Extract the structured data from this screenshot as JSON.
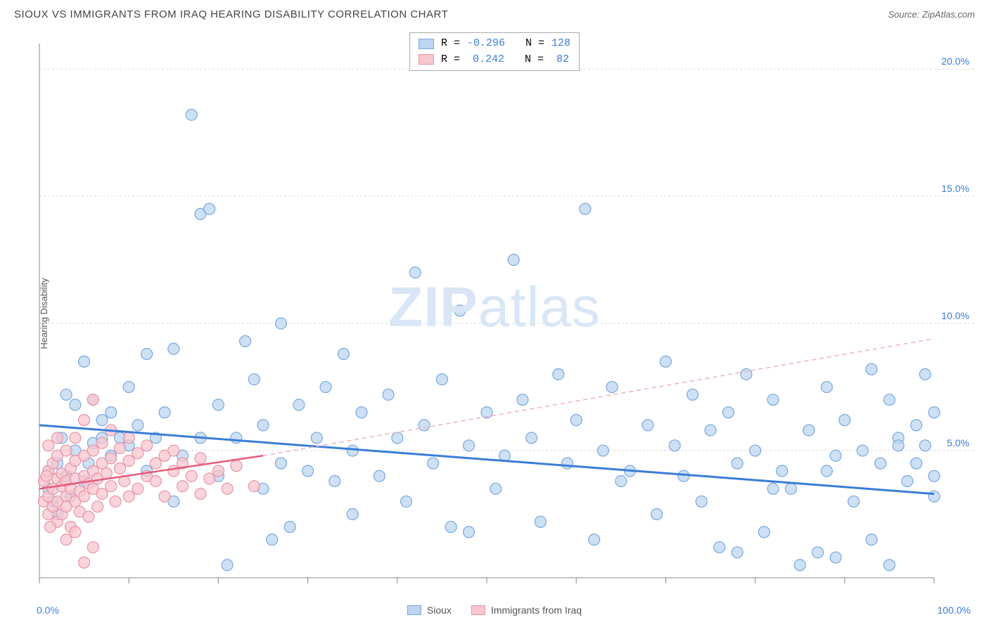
{
  "header": {
    "title": "SIOUX VS IMMIGRANTS FROM IRAQ HEARING DISABILITY CORRELATION CHART",
    "source_prefix": "Source: ",
    "source_link": "ZipAtlas.com"
  },
  "ylabel": "Hearing Disability",
  "watermark_bold": "ZIP",
  "watermark_rest": "atlas",
  "chart": {
    "type": "scatter",
    "xlim": [
      0,
      100
    ],
    "ylim": [
      0,
      21
    ],
    "x_ticks": [
      0,
      10,
      20,
      30,
      40,
      50,
      60,
      70,
      80,
      90,
      100
    ],
    "y_gridlines": [
      5,
      10,
      15,
      20
    ],
    "x_axis_labels": {
      "left": "0.0%",
      "right": "100.0%"
    },
    "y_axis_labels": [
      "5.0%",
      "10.0%",
      "15.0%",
      "20.0%"
    ],
    "background_color": "#ffffff",
    "grid_color": "#d9d9d9",
    "tick_color": "#888888",
    "axis_line_color": "#888888",
    "series": {
      "sioux": {
        "label": "Sioux",
        "marker_fill": "#bcd5f0",
        "marker_stroke": "#7aa8de",
        "marker_radius": 8,
        "line_color": "#3b7dd8",
        "line_width": 3,
        "R": "-0.296",
        "N": "128",
        "trend": {
          "x1": 0,
          "y1": 6.0,
          "x2": 100,
          "y2": 3.3
        },
        "points": [
          [
            1,
            3.5
          ],
          [
            1,
            4.2
          ],
          [
            1.5,
            3.0
          ],
          [
            2,
            4.5
          ],
          [
            2,
            2.5
          ],
          [
            2.5,
            5.5
          ],
          [
            3,
            4.0
          ],
          [
            3,
            7.2
          ],
          [
            3.5,
            3.2
          ],
          [
            4,
            5.0
          ],
          [
            4,
            6.8
          ],
          [
            5,
            3.8
          ],
          [
            5,
            8.5
          ],
          [
            5.5,
            4.5
          ],
          [
            6,
            5.3
          ],
          [
            6,
            7.0
          ],
          [
            7,
            5.5
          ],
          [
            7,
            6.2
          ],
          [
            8,
            4.8
          ],
          [
            8,
            6.5
          ],
          [
            9,
            5.5
          ],
          [
            10,
            7.5
          ],
          [
            10,
            5.2
          ],
          [
            11,
            6.0
          ],
          [
            12,
            4.2
          ],
          [
            12,
            8.8
          ],
          [
            13,
            5.5
          ],
          [
            14,
            6.5
          ],
          [
            15,
            3.0
          ],
          [
            15,
            9.0
          ],
          [
            16,
            4.8
          ],
          [
            17,
            18.2
          ],
          [
            18,
            14.3
          ],
          [
            18,
            5.5
          ],
          [
            19,
            14.5
          ],
          [
            20,
            4.0
          ],
          [
            20,
            6.8
          ],
          [
            21,
            0.5
          ],
          [
            22,
            5.5
          ],
          [
            23,
            9.3
          ],
          [
            24,
            7.8
          ],
          [
            25,
            3.5
          ],
          [
            25,
            6.0
          ],
          [
            26,
            1.5
          ],
          [
            27,
            4.5
          ],
          [
            27,
            10.0
          ],
          [
            28,
            2.0
          ],
          [
            29,
            6.8
          ],
          [
            30,
            4.2
          ],
          [
            31,
            5.5
          ],
          [
            32,
            7.5
          ],
          [
            33,
            3.8
          ],
          [
            34,
            8.8
          ],
          [
            35,
            2.5
          ],
          [
            35,
            5.0
          ],
          [
            36,
            6.5
          ],
          [
            38,
            4.0
          ],
          [
            39,
            7.2
          ],
          [
            40,
            5.5
          ],
          [
            41,
            3.0
          ],
          [
            42,
            12.0
          ],
          [
            43,
            6.0
          ],
          [
            44,
            4.5
          ],
          [
            45,
            7.8
          ],
          [
            46,
            2.0
          ],
          [
            47,
            10.5
          ],
          [
            48,
            5.2
          ],
          [
            48,
            1.8
          ],
          [
            50,
            6.5
          ],
          [
            51,
            3.5
          ],
          [
            52,
            4.8
          ],
          [
            53,
            12.5
          ],
          [
            54,
            7.0
          ],
          [
            55,
            5.5
          ],
          [
            56,
            2.2
          ],
          [
            58,
            8.0
          ],
          [
            59,
            4.5
          ],
          [
            60,
            6.2
          ],
          [
            61,
            14.5
          ],
          [
            62,
            1.5
          ],
          [
            63,
            5.0
          ],
          [
            64,
            7.5
          ],
          [
            65,
            3.8
          ],
          [
            66,
            4.2
          ],
          [
            68,
            6.0
          ],
          [
            69,
            2.5
          ],
          [
            70,
            8.5
          ],
          [
            71,
            5.2
          ],
          [
            72,
            4.0
          ],
          [
            73,
            7.2
          ],
          [
            74,
            3.0
          ],
          [
            75,
            5.8
          ],
          [
            76,
            1.2
          ],
          [
            77,
            6.5
          ],
          [
            78,
            4.5
          ],
          [
            79,
            8.0
          ],
          [
            80,
            5.0
          ],
          [
            81,
            1.8
          ],
          [
            82,
            7.0
          ],
          [
            83,
            4.2
          ],
          [
            84,
            3.5
          ],
          [
            85,
            0.5
          ],
          [
            86,
            5.8
          ],
          [
            87,
            1.0
          ],
          [
            88,
            7.5
          ],
          [
            89,
            4.8
          ],
          [
            89,
            0.8
          ],
          [
            90,
            6.2
          ],
          [
            91,
            3.0
          ],
          [
            92,
            5.0
          ],
          [
            93,
            1.5
          ],
          [
            93,
            8.2
          ],
          [
            94,
            4.5
          ],
          [
            95,
            7.0
          ],
          [
            95,
            0.5
          ],
          [
            96,
            5.5
          ],
          [
            97,
            3.8
          ],
          [
            98,
            6.0
          ],
          [
            98,
            4.5
          ],
          [
            99,
            5.2
          ],
          [
            99,
            8.0
          ],
          [
            100,
            4.0
          ],
          [
            100,
            6.5
          ],
          [
            100,
            3.2
          ],
          [
            96,
            5.2
          ],
          [
            88,
            4.2
          ],
          [
            82,
            3.5
          ],
          [
            78,
            1.0
          ]
        ]
      },
      "iraq": {
        "label": "Immigrants from Iraq",
        "marker_fill": "#f7c6cf",
        "marker_stroke": "#e994a6",
        "marker_radius": 8,
        "line_solid_color": "#e85a7a",
        "line_solid_width": 2.5,
        "line_dash_color": "#f0b0be",
        "line_dash_pattern": "6,5",
        "R": "0.242",
        "N": "82",
        "trend_solid": {
          "x1": 0,
          "y1": 3.5,
          "x2": 25,
          "y2": 4.8
        },
        "trend_dash": {
          "x1": 25,
          "y1": 4.8,
          "x2": 100,
          "y2": 9.4
        },
        "points": [
          [
            0.5,
            3.0
          ],
          [
            0.5,
            3.8
          ],
          [
            1,
            2.5
          ],
          [
            1,
            4.2
          ],
          [
            1,
            3.2
          ],
          [
            1.5,
            3.5
          ],
          [
            1.5,
            2.8
          ],
          [
            1.5,
            4.5
          ],
          [
            2,
            3.0
          ],
          [
            2,
            3.9
          ],
          [
            2,
            2.2
          ],
          [
            2,
            4.8
          ],
          [
            2.5,
            3.6
          ],
          [
            2.5,
            4.1
          ],
          [
            2.5,
            2.5
          ],
          [
            3,
            3.2
          ],
          [
            3,
            5.0
          ],
          [
            3,
            3.8
          ],
          [
            3,
            2.8
          ],
          [
            3.5,
            4.3
          ],
          [
            3.5,
            3.5
          ],
          [
            3.5,
            2.0
          ],
          [
            4,
            3.9
          ],
          [
            4,
            4.6
          ],
          [
            4,
            3.0
          ],
          [
            4,
            5.5
          ],
          [
            4.5,
            3.4
          ],
          [
            4.5,
            2.6
          ],
          [
            5,
            4.0
          ],
          [
            5,
            4.8
          ],
          [
            5,
            3.2
          ],
          [
            5,
            6.2
          ],
          [
            5.5,
            3.7
          ],
          [
            5.5,
            2.4
          ],
          [
            6,
            4.2
          ],
          [
            6,
            5.0
          ],
          [
            6,
            3.5
          ],
          [
            6,
            7.0
          ],
          [
            6.5,
            3.9
          ],
          [
            6.5,
            2.8
          ],
          [
            7,
            4.5
          ],
          [
            7,
            5.3
          ],
          [
            7,
            3.3
          ],
          [
            7.5,
            4.1
          ],
          [
            8,
            4.7
          ],
          [
            8,
            3.6
          ],
          [
            8,
            5.8
          ],
          [
            8.5,
            3.0
          ],
          [
            9,
            4.3
          ],
          [
            9,
            5.1
          ],
          [
            9.5,
            3.8
          ],
          [
            10,
            4.6
          ],
          [
            10,
            5.5
          ],
          [
            10,
            3.2
          ],
          [
            11,
            4.9
          ],
          [
            11,
            3.5
          ],
          [
            12,
            5.2
          ],
          [
            12,
            4.0
          ],
          [
            13,
            4.5
          ],
          [
            13,
            3.8
          ],
          [
            14,
            4.8
          ],
          [
            14,
            3.2
          ],
          [
            15,
            4.2
          ],
          [
            15,
            5.0
          ],
          [
            16,
            3.6
          ],
          [
            16,
            4.5
          ],
          [
            17,
            4.0
          ],
          [
            18,
            3.3
          ],
          [
            18,
            4.7
          ],
          [
            19,
            3.9
          ],
          [
            20,
            4.2
          ],
          [
            21,
            3.5
          ],
          [
            22,
            4.4
          ],
          [
            5,
            0.6
          ],
          [
            3,
            1.5
          ],
          [
            4,
            1.8
          ],
          [
            6,
            1.2
          ],
          [
            2,
            5.5
          ],
          [
            1,
            5.2
          ],
          [
            0.8,
            4.0
          ],
          [
            1.2,
            2.0
          ],
          [
            24,
            3.6
          ]
        ]
      }
    }
  },
  "legend_top": {
    "sioux_swatch_fill": "#bcd5f0",
    "sioux_swatch_border": "#7aa8de",
    "iraq_swatch_fill": "#f7c6cf",
    "iraq_swatch_border": "#e994a6",
    "r_label": "R =",
    "n_label": "N ="
  }
}
